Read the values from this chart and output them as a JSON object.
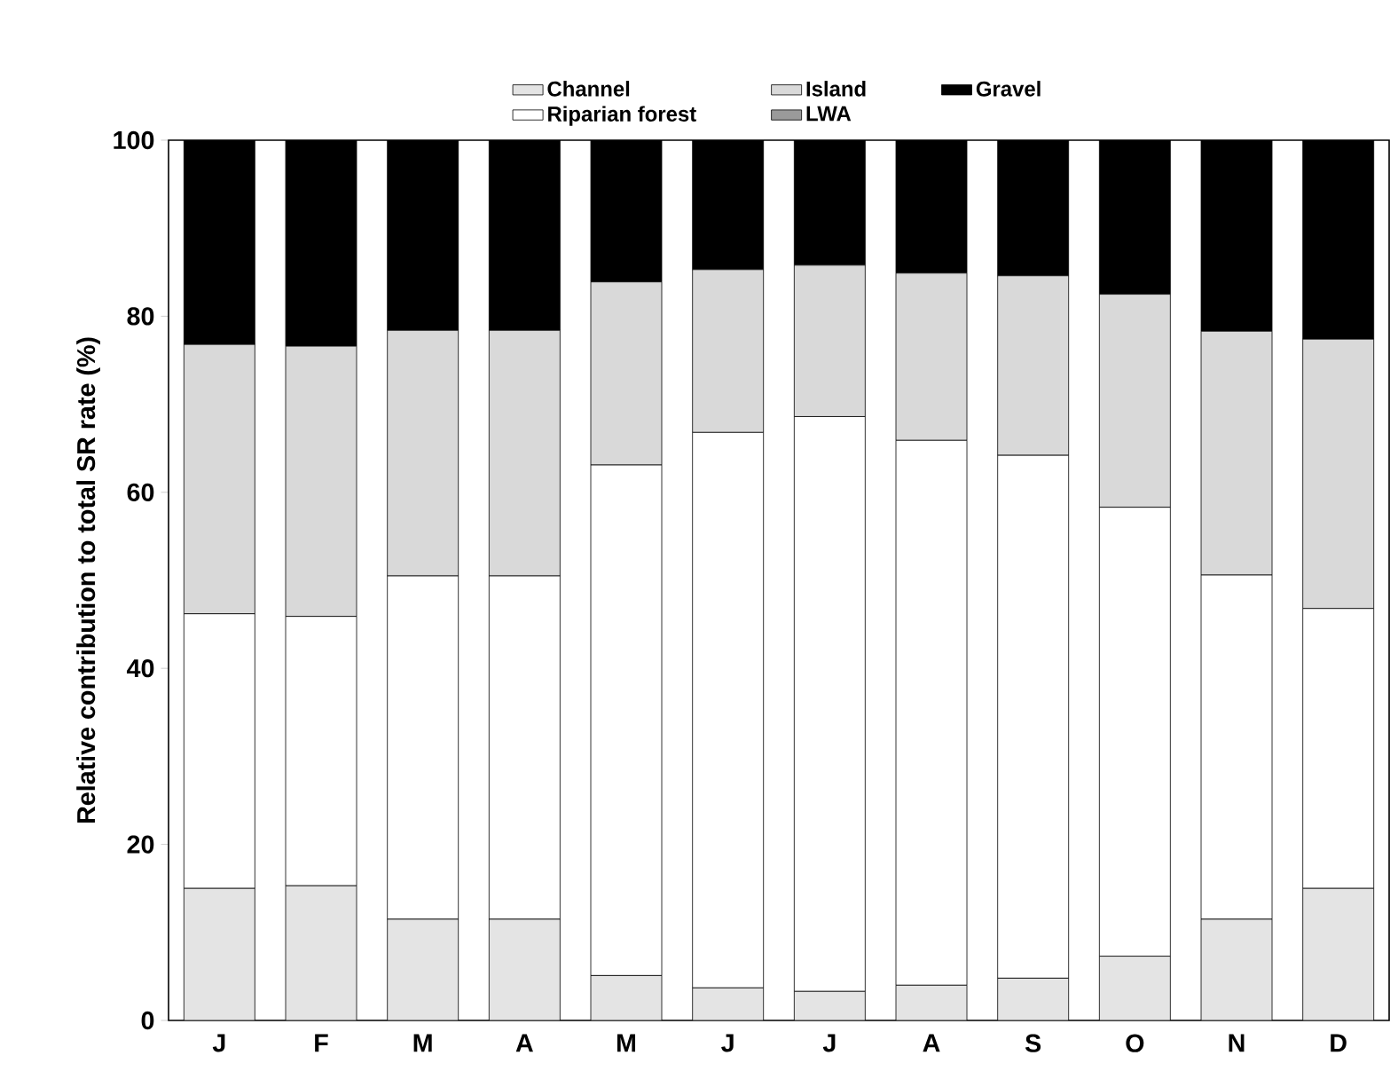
{
  "chart_data": {
    "type": "bar",
    "stacked": true,
    "ylabel": "Relative contribution to total SR rate (%)",
    "categories": [
      "J",
      "F",
      "M",
      "A",
      "M",
      "J",
      "J",
      "A",
      "S",
      "O",
      "N",
      "D"
    ],
    "series": [
      {
        "name": "Channel",
        "color": "#e4e4e4",
        "values": [
          15,
          15.3,
          11.5,
          11.5,
          5.1,
          3.7,
          3.3,
          4,
          4.8,
          7.3,
          11.5,
          15
        ]
      },
      {
        "name": "Riparian forest",
        "color": "#ffffff",
        "values": [
          31.2,
          30.6,
          39,
          39,
          58,
          63.1,
          65.3,
          61.9,
          59.4,
          51,
          39.1,
          31.8
        ]
      },
      {
        "name": "Island",
        "color": "#d9d9d9",
        "values": [
          30.6,
          30.7,
          27.9,
          27.9,
          20.8,
          18.5,
          17.2,
          19,
          20.4,
          24.2,
          27.7,
          30.6
        ]
      },
      {
        "name": "LWA",
        "color": "#9a9a9a",
        "values": [
          0,
          0,
          0,
          0,
          0,
          0,
          0,
          0,
          0,
          0,
          0,
          0
        ]
      },
      {
        "name": "Gravel",
        "color": "#000000",
        "values": [
          23.2,
          23.4,
          21.6,
          21.6,
          16.1,
          14.7,
          14.2,
          15.1,
          15.4,
          17.5,
          21.7,
          22.6
        ]
      }
    ],
    "ylim": [
      0,
      100
    ],
    "yticks": [
      0,
      20,
      40,
      60,
      80,
      100
    ],
    "grid": false,
    "legend": "top"
  }
}
